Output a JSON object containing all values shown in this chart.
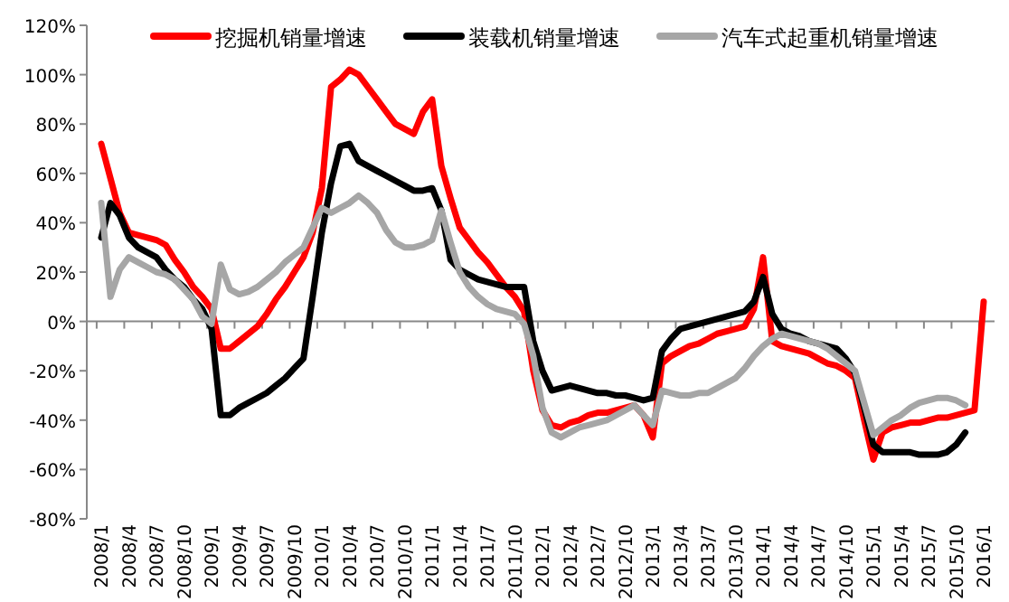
{
  "chart_data": {
    "type": "line",
    "categories": [
      "2008/1",
      null,
      null,
      "2008/4",
      null,
      null,
      "2008/7",
      null,
      null,
      "2008/10",
      null,
      null,
      "2009/1",
      null,
      null,
      "2009/4",
      null,
      null,
      "2009/7",
      null,
      null,
      "2009/10",
      null,
      null,
      "2010/1",
      null,
      null,
      "2010/4",
      null,
      null,
      "2010/7",
      null,
      null,
      "2010/10",
      null,
      null,
      "2011/1",
      null,
      null,
      "2011/4",
      null,
      null,
      "2011/7",
      null,
      null,
      "2011/10",
      null,
      null,
      "2012/1",
      null,
      null,
      "2012/4",
      null,
      null,
      "2012/7",
      null,
      null,
      "2012/10",
      null,
      null,
      "2013/1",
      null,
      null,
      "2013/4",
      null,
      null,
      "2013/7",
      null,
      null,
      "2013/10",
      null,
      null,
      "2014/1",
      null,
      null,
      "2014/4",
      null,
      null,
      "2014/7",
      null,
      null,
      "2014/10",
      null,
      null,
      "2015/1",
      null,
      null,
      "2015/4",
      null,
      null,
      "2015/7",
      null,
      null,
      "2015/10",
      null,
      null,
      "2016/1"
    ],
    "series": [
      {
        "name": "挖掘机销量增速",
        "color": "#ff0000",
        "values": [
          72,
          58,
          44,
          36,
          35,
          34,
          33,
          31,
          25,
          20,
          14,
          10,
          5,
          -11,
          -11,
          -8,
          -5,
          -2,
          3,
          9,
          14,
          20,
          26,
          36,
          54,
          95,
          98,
          102,
          100,
          95,
          90,
          85,
          80,
          78,
          76,
          85,
          90,
          63,
          50,
          38,
          33,
          28,
          24,
          19,
          14,
          10,
          4,
          -20,
          -36,
          -42,
          -43,
          -41,
          -40,
          -38,
          -37,
          -37,
          -36,
          -35,
          -34,
          -38,
          -47,
          -17,
          -14,
          -12,
          -10,
          -9,
          -7,
          -5,
          -4,
          -3,
          -2,
          5,
          26,
          -8,
          -10,
          -11,
          -12,
          -13,
          -15,
          -17,
          -18,
          -20,
          -23,
          -40,
          -56,
          -45,
          -43,
          -42,
          -41,
          -41,
          -40,
          -39,
          -39,
          -38,
          -37,
          -36,
          8
        ]
      },
      {
        "name": "装载机销量增速",
        "color": "#000000",
        "values": [
          34,
          48,
          43,
          34,
          30,
          28,
          26,
          21,
          17,
          14,
          9,
          5,
          -3,
          -38,
          -38,
          -35,
          -33,
          -31,
          -29,
          -26,
          -23,
          -19,
          -15,
          10,
          36,
          56,
          71,
          72,
          65,
          63,
          61,
          59,
          57,
          55,
          53,
          53,
          54,
          45,
          25,
          21,
          19,
          17,
          16,
          15,
          14,
          14,
          14,
          -8,
          -20,
          -28,
          -27,
          -26,
          -27,
          -28,
          -29,
          -29,
          -30,
          -30,
          -31,
          -32,
          -31,
          -12,
          -7,
          -3,
          -2,
          -1,
          0,
          1,
          2,
          3,
          4,
          8,
          18,
          3,
          -3,
          -5,
          -6,
          -8,
          -9,
          -10,
          -11,
          -15,
          -21,
          -35,
          -50,
          -53,
          -53,
          -53,
          -53,
          -54,
          -54,
          -54,
          -53,
          -50,
          -45,
          null,
          null
        ]
      },
      {
        "name": "汽车式起重机销量增速",
        "color": "#a6a6a6",
        "values": [
          48,
          10,
          21,
          26,
          24,
          22,
          20,
          19,
          17,
          13,
          9,
          2,
          -1,
          23,
          13,
          11,
          12,
          14,
          17,
          20,
          24,
          27,
          30,
          38,
          46,
          44,
          46,
          48,
          51,
          48,
          44,
          37,
          32,
          30,
          30,
          31,
          33,
          45,
          32,
          20,
          14,
          10,
          7,
          5,
          4,
          3,
          -1,
          -14,
          -35,
          -45,
          -47,
          -45,
          -43,
          -42,
          -41,
          -40,
          -38,
          -36,
          -34,
          -38,
          -42,
          -28,
          -29,
          -30,
          -30,
          -29,
          -29,
          -27,
          -25,
          -23,
          -19,
          -14,
          -10,
          -7,
          -5,
          -6,
          -7,
          -8,
          -9,
          -11,
          -14,
          -17,
          -20,
          -33,
          -46,
          -43,
          -40,
          -38,
          -35,
          -33,
          -32,
          -31,
          -31,
          -32,
          -34,
          null,
          null
        ]
      }
    ],
    "ylim": [
      -80,
      120
    ],
    "yticks": [
      {
        "value": -80,
        "label": "-80%"
      },
      {
        "value": -60,
        "label": "-60%"
      },
      {
        "value": -40,
        "label": "-40%"
      },
      {
        "value": -20,
        "label": "-20%"
      },
      {
        "value": 0,
        "label": "0%"
      },
      {
        "value": 20,
        "label": "20%"
      },
      {
        "value": 40,
        "label": "40%"
      },
      {
        "value": 60,
        "label": "60%"
      },
      {
        "value": 80,
        "label": "80%"
      },
      {
        "value": 100,
        "label": "100%"
      },
      {
        "value": 120,
        "label": "120%"
      }
    ],
    "legend": "top",
    "marker": "none",
    "line_style": "solid"
  }
}
